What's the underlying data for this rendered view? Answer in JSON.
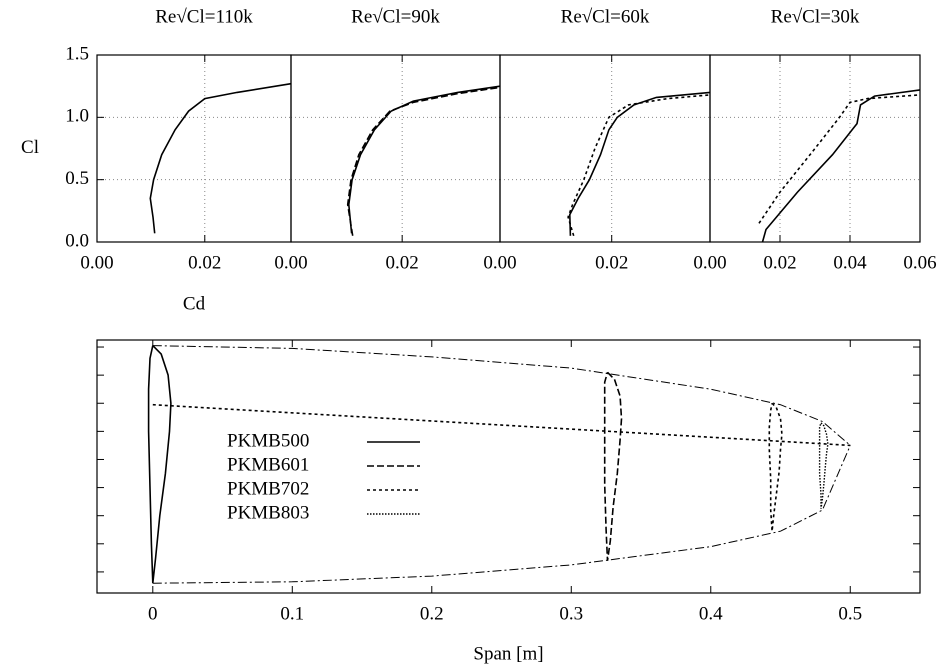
{
  "chart_data": [
    {
      "type": "line",
      "title": "Re√Cl=110k",
      "xlabel": "Cd",
      "ylabel": "Cl",
      "grid": true,
      "xlim": [
        0,
        0.036
      ],
      "ylim": [
        0,
        1.5
      ],
      "xticks": [
        {
          "value": 0,
          "label": "0.00"
        },
        {
          "value": 0.02,
          "label": "0.02"
        }
      ],
      "yticks": [
        {
          "value": 0,
          "label": "0.0"
        },
        {
          "value": 0.5,
          "label": "0.5"
        },
        {
          "value": 1,
          "label": "1.0"
        },
        {
          "value": 1.5,
          "label": "1.5"
        }
      ],
      "series": [
        {
          "dash": "solid",
          "x": [
            0.0107,
            0.0104,
            0.0099,
            0.0105,
            0.012,
            0.0145,
            0.017,
            0.02,
            0.026,
            0.036
          ],
          "values": [
            0.07,
            0.2,
            0.35,
            0.5,
            0.7,
            0.9,
            1.05,
            1.15,
            1.2,
            1.27
          ]
        }
      ]
    },
    {
      "type": "line",
      "title": "Re√Cl=90k",
      "grid": true,
      "xlim": [
        0,
        0.0376
      ],
      "ylim": [
        0,
        1.5
      ],
      "xticks": [
        {
          "value": 0,
          "label": "0.00"
        },
        {
          "value": 0.02,
          "label": "0.02"
        }
      ],
      "series": [
        {
          "dash": "solid",
          "x": [
            0.0109,
            0.0104,
            0.011,
            0.0125,
            0.015,
            0.018,
            0.022,
            0.03,
            0.0376
          ],
          "values": [
            0.07,
            0.3,
            0.5,
            0.7,
            0.9,
            1.05,
            1.13,
            1.2,
            1.25
          ]
        },
        {
          "dash": "dashed",
          "x": [
            0.0111,
            0.0102,
            0.0108,
            0.0122,
            0.0147,
            0.0178,
            0.022,
            0.03,
            0.0376
          ],
          "values": [
            0.05,
            0.3,
            0.5,
            0.7,
            0.9,
            1.05,
            1.12,
            1.19,
            1.24
          ]
        }
      ]
    },
    {
      "type": "line",
      "title": "Re√Cl=60k",
      "grid": true,
      "xlim": [
        0,
        0.0376
      ],
      "ylim": [
        0,
        1.5
      ],
      "xticks": [
        {
          "value": 0,
          "label": "0.00"
        },
        {
          "value": 0.02,
          "label": "0.02"
        }
      ],
      "series": [
        {
          "dash": "solid",
          "x": [
            0.0126,
            0.0125,
            0.014,
            0.016,
            0.018,
            0.0195,
            0.021,
            0.024,
            0.028,
            0.0376
          ],
          "values": [
            0.05,
            0.22,
            0.35,
            0.5,
            0.7,
            0.9,
            1.0,
            1.1,
            1.16,
            1.2
          ]
        },
        {
          "dash": "dotted",
          "x": [
            0.0132,
            0.0122,
            0.013,
            0.015,
            0.017,
            0.0195,
            0.023,
            0.03,
            0.0376
          ],
          "values": [
            0.05,
            0.2,
            0.3,
            0.5,
            0.75,
            1.0,
            1.1,
            1.15,
            1.18
          ]
        }
      ]
    },
    {
      "type": "line",
      "title": "Re√Cl=30k",
      "grid": true,
      "xlim": [
        0,
        0.06
      ],
      "ylim": [
        0,
        1.5
      ],
      "xticks": [
        {
          "value": 0,
          "label": "0.00"
        },
        {
          "value": 0.02,
          "label": "0.02"
        },
        {
          "value": 0.04,
          "label": "0.04"
        },
        {
          "value": 0.06,
          "label": "0.06"
        }
      ],
      "series": [
        {
          "dash": "solid",
          "x": [
            0.015,
            0.016,
            0.025,
            0.035,
            0.042,
            0.043,
            0.047,
            0.06
          ],
          "values": [
            0.0,
            0.1,
            0.4,
            0.7,
            0.95,
            1.1,
            1.17,
            1.22
          ]
        },
        {
          "dash": "dotted",
          "x": [
            0.014,
            0.02,
            0.03,
            0.037,
            0.04,
            0.045,
            0.06
          ],
          "values": [
            0.15,
            0.4,
            0.75,
            1.0,
            1.12,
            1.15,
            1.18
          ]
        }
      ]
    },
    {
      "type": "line",
      "xlabel": "Span [m]",
      "legend": "left",
      "xlim": [
        -0.04,
        0.55
      ],
      "ylim": [
        -0.095,
        0.085
      ],
      "xticks": [
        0,
        0.1,
        0.2,
        0.3,
        0.4,
        0.5
      ],
      "yticks": [
        -0.08,
        -0.06,
        -0.04,
        -0.02,
        0,
        0.02,
        0.04,
        0.06,
        0.08
      ],
      "outlines": [
        {
          "dash": "dashdot",
          "x": [
            0,
            0.1,
            0.2,
            0.3,
            0.4,
            0.45,
            0.48,
            0.5
          ],
          "values": [
            0.081,
            0.079,
            0.073,
            0.065,
            0.05,
            0.039,
            0.027,
            0.01
          ]
        },
        {
          "dash": "dashdot",
          "x": [
            0,
            0.1,
            0.2,
            0.3,
            0.4,
            0.45,
            0.48,
            0.5
          ],
          "values": [
            -0.088,
            -0.087,
            -0.083,
            -0.075,
            -0.062,
            -0.051,
            -0.036,
            0.01
          ]
        },
        {
          "dash": "dotted",
          "x": [
            0,
            0.5
          ],
          "values": [
            0.039,
            0.01
          ]
        }
      ],
      "series": [
        {
          "name": "PKMB500",
          "dash": "solid",
          "x": [
            0,
            0.006,
            0.011,
            0.013,
            0.012,
            0.009,
            0.005,
            0.002,
            0,
            -0.001,
            -0.002,
            -0.003,
            -0.003,
            -0.002,
            0
          ],
          "values": [
            0.081,
            0.075,
            0.06,
            0.04,
            0.02,
            -0.01,
            -0.04,
            -0.07,
            -0.088,
            -0.06,
            -0.02,
            0.02,
            0.05,
            0.072,
            0.081
          ]
        },
        {
          "name": "PKMB601",
          "dash": "dashed",
          "x": [
            0.326,
            0.331,
            0.335,
            0.336,
            0.335,
            0.333,
            0.33,
            0.328,
            0.326,
            0.325,
            0.324,
            0.324,
            0.324,
            0.324,
            0.326
          ],
          "values": [
            0.062,
            0.057,
            0.045,
            0.029,
            0.014,
            -0.01,
            -0.034,
            -0.058,
            -0.072,
            -0.05,
            -0.018,
            0.014,
            0.037,
            0.055,
            0.062
          ]
        },
        {
          "name": "PKMB702",
          "dash": "dotted",
          "x": [
            0.444,
            0.447,
            0.45,
            0.451,
            0.45,
            0.449,
            0.447,
            0.445,
            0.444,
            0.443,
            0.443,
            0.442,
            0.442,
            0.443,
            0.444
          ],
          "values": [
            0.04,
            0.037,
            0.029,
            0.018,
            0.007,
            -0.009,
            -0.025,
            -0.041,
            -0.051,
            -0.036,
            -0.014,
            0.007,
            0.023,
            0.035,
            0.04
          ]
        },
        {
          "name": "PKMB803",
          "dash": "finedotted",
          "x": [
            0.479,
            0.481,
            0.483,
            0.484,
            0.483,
            0.482,
            0.481,
            0.48,
            0.479,
            0.479,
            0.478,
            0.478,
            0.478,
            0.478,
            0.479
          ],
          "values": [
            0.026,
            0.024,
            0.018,
            0.011,
            0.004,
            -0.007,
            -0.018,
            -0.028,
            -0.035,
            -0.025,
            -0.01,
            0.004,
            0.015,
            0.023,
            0.026
          ]
        }
      ]
    }
  ]
}
